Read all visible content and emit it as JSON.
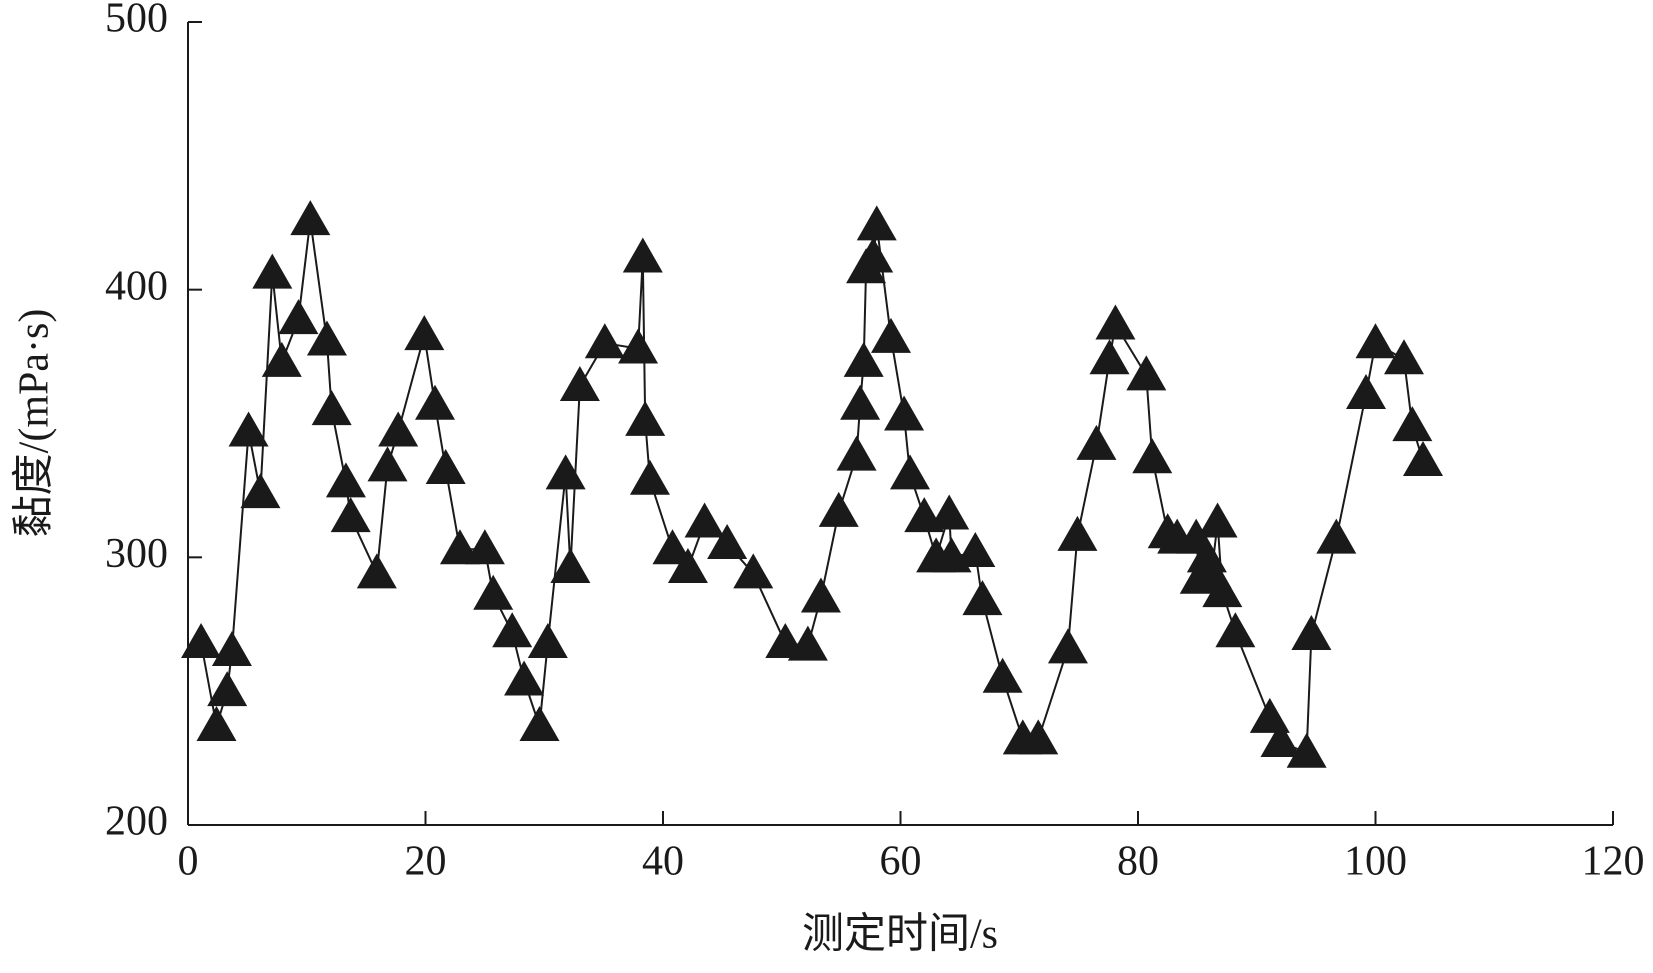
{
  "chart_data": {
    "type": "line",
    "x_label": "测定时间/s",
    "y_label": "黏度/(mPa·s)",
    "x": [
      1.1,
      2.4,
      3.3,
      3.7,
      5.1,
      6.1,
      7.1,
      7.9,
      9.3,
      10.3,
      11.7,
      12.1,
      13.3,
      13.7,
      15.9,
      16.8,
      17.7,
      19.9,
      20.8,
      21.7,
      22.9,
      25.0,
      25.7,
      27.3,
      28.3,
      29.6,
      30.3,
      31.8,
      32.2,
      33.0,
      35.1,
      37.9,
      38.3,
      38.5,
      38.9,
      40.8,
      42.1,
      43.5,
      45.4,
      47.6,
      50.3,
      52.2,
      53.3,
      54.8,
      56.3,
      56.6,
      56.9,
      57.1,
      57.7,
      58.0,
      59.2,
      60.3,
      60.8,
      62.0,
      63.0,
      64.1,
      64.3,
      66.3,
      66.9,
      68.6,
      70.3,
      71.6,
      74.1,
      74.9,
      76.5,
      77.6,
      78.1,
      80.7,
      81.2,
      82.5,
      83.3,
      84.9,
      85.2,
      85.8,
      86.2,
      86.7,
      87.1,
      88.2,
      91.1,
      92.0,
      94.2,
      94.6,
      96.7,
      99.2,
      100.0,
      102.4,
      103.1,
      104.0
    ],
    "values": [
      268,
      237,
      250,
      265,
      347,
      324,
      406,
      373,
      389,
      426,
      381,
      355,
      328,
      315,
      294,
      334,
      347,
      383,
      357,
      333,
      303,
      303,
      286,
      272,
      254,
      237,
      268,
      331,
      296,
      364,
      380,
      378,
      412,
      351,
      329,
      303,
      296,
      313,
      305,
      294,
      268,
      267,
      285,
      317,
      338,
      357,
      373,
      408,
      412,
      424,
      382,
      353,
      331,
      315,
      300,
      316,
      300,
      302,
      284,
      255,
      232,
      232,
      266,
      308,
      342,
      374,
      387,
      368,
      337,
      309,
      307,
      307,
      292,
      300,
      294,
      313,
      287,
      272,
      240,
      231,
      227,
      271,
      307,
      361,
      380,
      374,
      349,
      336
    ],
    "color": "#1a1a1a",
    "marker": "triangle",
    "xlim": [
      0,
      120
    ],
    "xticks": [
      0,
      20,
      40,
      60,
      80,
      100,
      120
    ],
    "ylim": [
      200,
      500
    ],
    "yticks": [
      200,
      300,
      400,
      500
    ]
  }
}
